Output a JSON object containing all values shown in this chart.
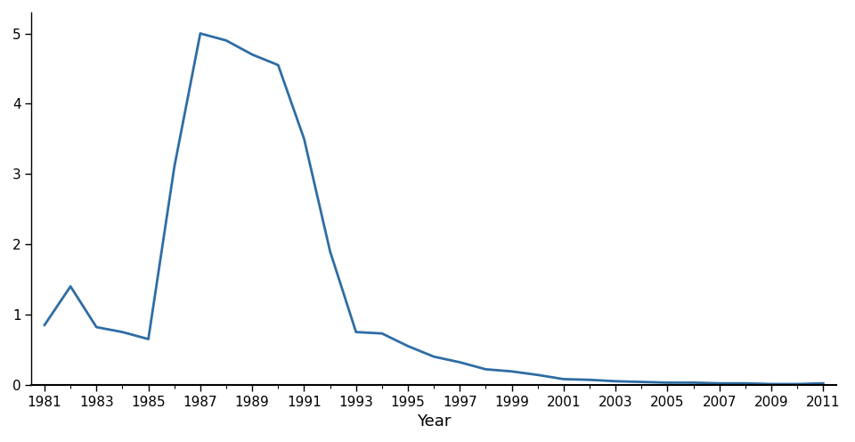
{
  "years": [
    1981,
    1982,
    1983,
    1984,
    1985,
    1986,
    1987,
    1988,
    1989,
    1990,
    1991,
    1992,
    1993,
    1994,
    1995,
    1996,
    1997,
    1998,
    1999,
    2000,
    2001,
    2002,
    2003,
    2004,
    2005,
    2006,
    2007,
    2008,
    2009,
    2010,
    2011
  ],
  "cases_thousands": [
    0.85,
    1.4,
    0.82,
    0.75,
    0.65,
    3.1,
    5.0,
    4.9,
    4.7,
    4.55,
    3.5,
    1.9,
    0.75,
    0.73,
    0.55,
    0.4,
    0.32,
    0.22,
    0.19,
    0.14,
    0.08,
    0.07,
    0.05,
    0.04,
    0.03,
    0.03,
    0.02,
    0.02,
    0.01,
    0.01,
    0.02
  ],
  "line_color": "#2e6da4",
  "line_width": 2.0,
  "xlabel": "Year",
  "ylim": [
    0,
    5.3
  ],
  "xlim": [
    1980.5,
    2011.5
  ],
  "yticks": [
    0,
    1,
    2,
    3,
    4,
    5
  ],
  "xtick_labels": [
    "1981",
    "1983",
    "1985",
    "1987",
    "1989",
    "1991",
    "1993",
    "1995",
    "1997",
    "1999",
    "2001",
    "2003",
    "2005",
    "2007",
    "2009",
    "2011"
  ],
  "xtick_positions": [
    1981,
    1983,
    1985,
    1987,
    1989,
    1991,
    1993,
    1995,
    1997,
    1999,
    2001,
    2003,
    2005,
    2007,
    2009,
    2011
  ],
  "background_color": "#ffffff",
  "ylabel_fontsize": 13,
  "xlabel_fontsize": 13,
  "tick_fontsize": 11
}
